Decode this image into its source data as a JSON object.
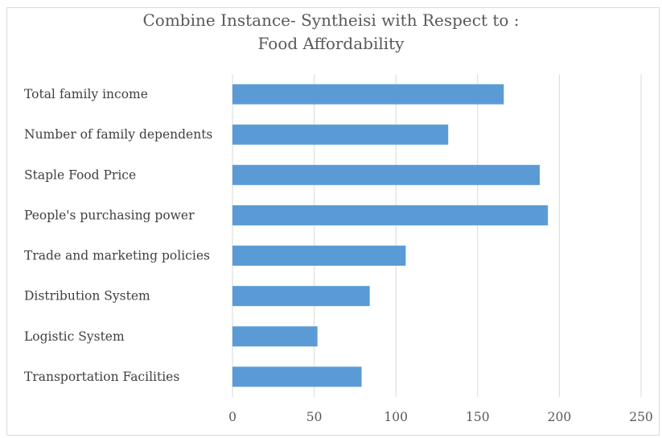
{
  "chart_data": {
    "type": "bar",
    "orientation": "horizontal",
    "title_line1": "Combine Instance- Syntheisi with Respect to :",
    "title_line2": "Food Affordability",
    "categories": [
      "Total family income",
      "Number of family dependents",
      "Staple Food Price",
      "People's purchasing power",
      "Trade and marketing policies",
      "Distribution System",
      "Logistic System",
      "Transportation Facilities"
    ],
    "values": [
      166,
      132,
      188,
      193,
      106,
      84,
      52,
      79
    ],
    "xlim": [
      0,
      250
    ],
    "xticks": [
      0,
      50,
      100,
      150,
      200,
      250
    ],
    "grid": "vertical",
    "bar_color": "#5b9bd5"
  }
}
